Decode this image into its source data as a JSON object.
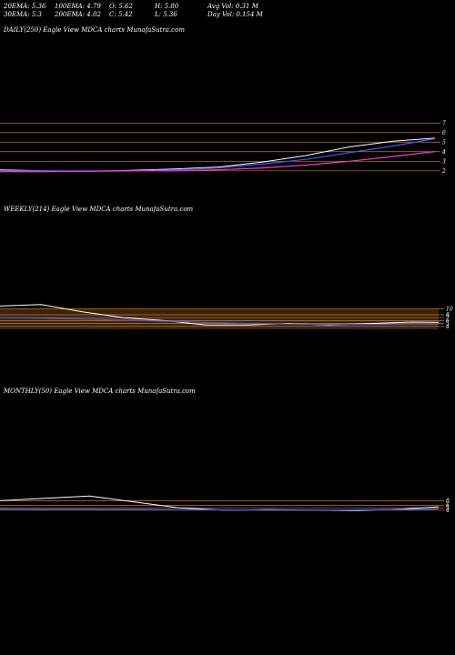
{
  "stats": {
    "ema20": "20EMA: 5.36",
    "ema30": "30EMA: 5.3",
    "ema100": "100EMA: 4.79",
    "ema200": "200EMA: 4.02",
    "open": "O: 5.62",
    "close": "C: 5.42",
    "high": "H: 5.80",
    "low": "L: 5.36",
    "avg_vol": "Avg Vol: 0.31  M",
    "day_vol": "Day Vol: 0.154  M"
  },
  "panels": {
    "daily": {
      "title": "DAILY(250) Eagle   View  MDCA charts MunafaSutra.com"
    },
    "weekly": {
      "title": "WEEKLY(214) Eagle   View  MDCA charts MunafaSutra.com"
    },
    "monthly": {
      "title": "MONTHLY(50) Eagle   View  MDCA charts MunafaSutra.com"
    }
  },
  "colors": {
    "background": "#000000",
    "price": "#ffffff",
    "ema_blue": "#3b5bff",
    "ema_magenta": "#ff33cc",
    "gridline": "#c87a1e",
    "volume": "#6a4012"
  },
  "chart_data": [
    {
      "type": "line",
      "name": "daily",
      "x": [
        0,
        25,
        50,
        75,
        100,
        125,
        150,
        175,
        200,
        225,
        249
      ],
      "series": [
        {
          "values": [
            2.1,
            2.0,
            1.95,
            2.05,
            2.2,
            2.4,
            2.9,
            3.6,
            4.5,
            5.1,
            5.42
          ]
        },
        {
          "values": [
            2.0,
            2.0,
            2.0,
            2.0,
            2.1,
            2.3,
            2.7,
            3.2,
            3.9,
            4.6,
            5.36
          ]
        },
        {
          "values": [
            1.9,
            1.9,
            1.95,
            2.0,
            2.0,
            2.1,
            2.3,
            2.6,
            3.0,
            3.5,
            4.02
          ]
        }
      ],
      "ytick_labels": [
        "7",
        "6",
        "5",
        "4",
        "3",
        "2"
      ],
      "yticks": [
        7,
        6,
        5,
        4,
        3,
        2
      ],
      "ylim": [
        1.6,
        7.5
      ]
    },
    {
      "type": "line",
      "name": "weekly",
      "x": [
        0,
        20,
        40,
        60,
        80,
        100,
        120,
        140,
        160,
        180,
        200,
        213
      ],
      "series": [
        {
          "values": [
            11,
            11.5,
            9,
            7,
            6,
            4.5,
            4.5,
            5,
            4.5,
            5,
            5.5,
            5.42
          ]
        },
        {
          "values": [
            7,
            6.8,
            6.5,
            6.2,
            5.8,
            5.4,
            5,
            4.8,
            4.7,
            4.7,
            4.8,
            4.79
          ]
        }
      ],
      "ytick_labels": [
        "10",
        "8",
        "7",
        "6",
        "5",
        "4"
      ],
      "yticks": [
        10,
        8,
        7,
        6,
        5,
        4
      ],
      "ylim": [
        3,
        13
      ]
    },
    {
      "type": "line",
      "name": "monthly",
      "x": [
        0,
        5,
        10,
        15,
        20,
        25,
        30,
        35,
        40,
        45,
        49
      ],
      "series": [
        {
          "values": [
            8,
            9,
            10,
            7.5,
            5,
            4,
            4.2,
            4,
            3.8,
            4.5,
            5.42
          ]
        },
        {
          "values": [
            4.5,
            4.4,
            4.4,
            4.3,
            4.2,
            4.1,
            4.0,
            4.0,
            4.1,
            4.3,
            4.5
          ]
        }
      ],
      "ytick_labels": [
        "8",
        "6",
        "5",
        "4"
      ],
      "yticks": [
        8,
        6,
        5,
        4
      ],
      "ylim": [
        2,
        12
      ]
    }
  ]
}
